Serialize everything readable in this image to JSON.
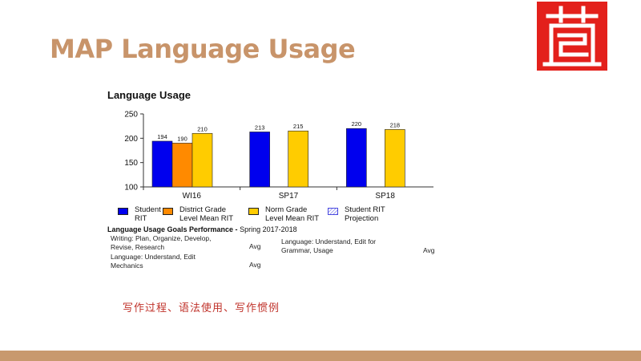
{
  "slide": {
    "title": "MAP Language Usage",
    "chinese_note": "写作过程、语法使用、写作惯例"
  },
  "colors": {
    "title": "#c8946a",
    "logo_red": "#e3201b",
    "bottom_bar": "#c8996e",
    "student": "#0000ee",
    "district": "#ff8a00",
    "norm": "#ffcc00",
    "projection": "#4a4ae0"
  },
  "chart_data": {
    "type": "bar",
    "title": "Language Usage",
    "categories": [
      "WI16",
      "SP17",
      "SP18"
    ],
    "ylim": [
      100,
      250
    ],
    "yticks": [
      100,
      150,
      200,
      250
    ],
    "series": [
      {
        "name": "Student RIT",
        "color": "#0000ee",
        "values": [
          194,
          213,
          220
        ]
      },
      {
        "name": "District Grade Level Mean RIT",
        "color": "#ff8a00",
        "values": [
          190,
          null,
          null
        ]
      },
      {
        "name": "Norm Grade Level Mean RIT",
        "color": "#ffcc00",
        "values": [
          210,
          215,
          218
        ]
      }
    ],
    "legend": [
      {
        "label": "Student RIT",
        "color": "#0000ee",
        "style": "solid"
      },
      {
        "label": "District Grade Level Mean RIT",
        "color": "#ff8a00",
        "style": "solid"
      },
      {
        "label": "Norm Grade Level Mean RIT",
        "color": "#ffcc00",
        "style": "solid"
      },
      {
        "label": "Student RIT Projection",
        "color": "#4a4ae0",
        "style": "hatched"
      }
    ],
    "legend_position": "bottom",
    "grid": false
  },
  "goals": {
    "title_bold": "Language Usage Goals Performance - ",
    "title_rest": "Spring 2017-2018",
    "items": [
      {
        "label": "Writing: Plan, Organize, Develop, Revise, Research",
        "value": "Avg"
      },
      {
        "label": "Language: Understand, Edit Mechanics",
        "value": "Avg"
      },
      {
        "label": "Language: Understand, Edit for Grammar, Usage",
        "value": "Avg"
      }
    ]
  }
}
